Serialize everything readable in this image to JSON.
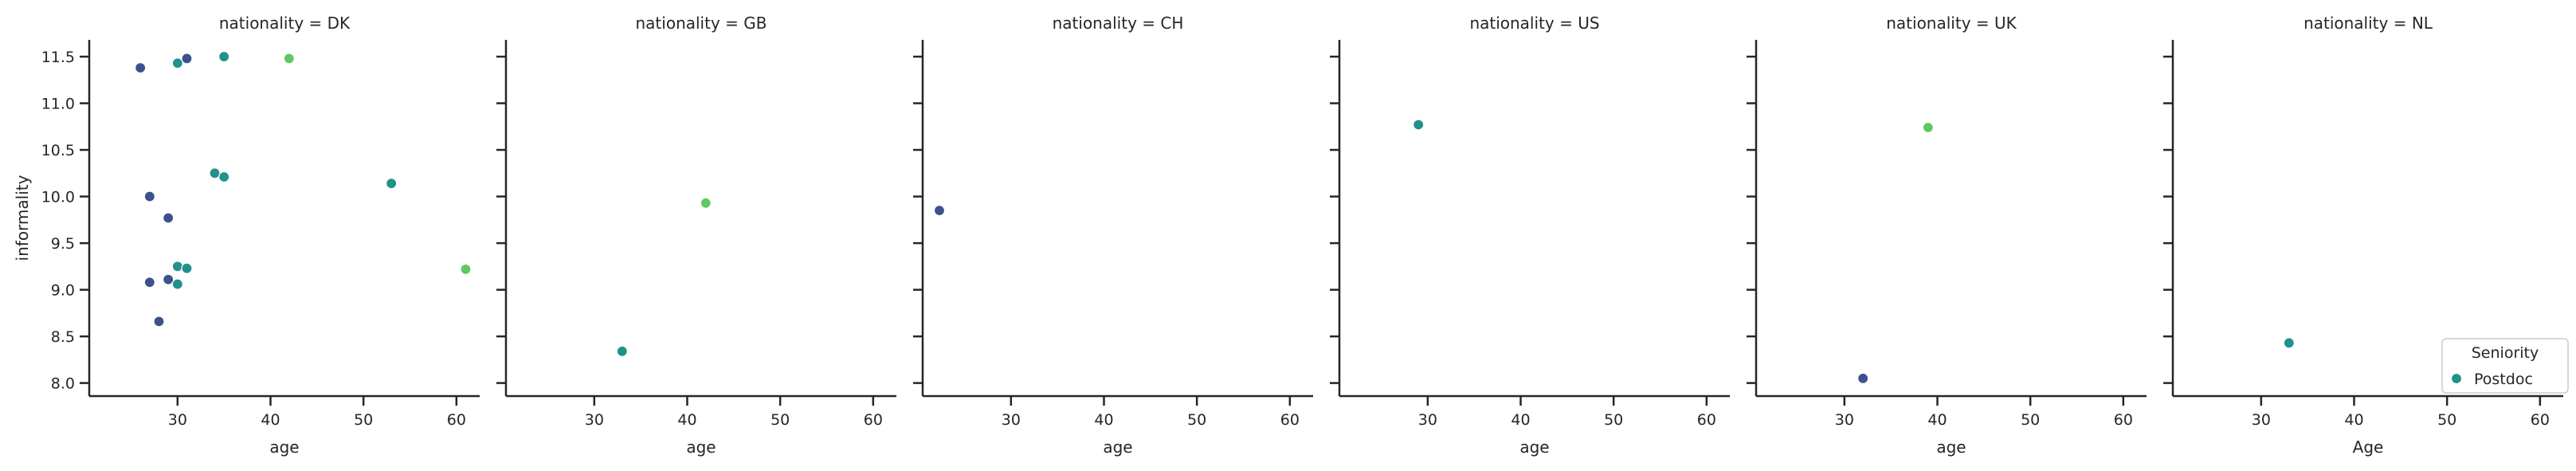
{
  "chart_data": {
    "type": "scatter",
    "facet_label": "nationality",
    "y_label": "informality",
    "x_range": [
      20.5,
      62.5
    ],
    "y_range": [
      7.86,
      11.68
    ],
    "x_ticks": [
      30,
      40,
      50,
      60
    ],
    "y_ticks": [
      8.0,
      8.5,
      9.0,
      9.5,
      10.0,
      10.5,
      11.0,
      11.5
    ],
    "y_tick_labels": [
      "8.0",
      "8.5",
      "9.0",
      "9.5",
      "10.0",
      "10.5",
      "11.0",
      "11.5"
    ],
    "shared_y": true,
    "grid": false,
    "legend": {
      "title": "Seniority",
      "placement": "lower-right",
      "entries": [
        {
          "label": "Postdoc",
          "color": "#21918c"
        }
      ]
    },
    "colors": {
      "dark_blue": "#3b528b",
      "teal": "#21918c",
      "green": "#5ec962"
    },
    "panels": [
      {
        "title": "nationality = DK",
        "xlabel": "age",
        "points": [
          {
            "x": 26,
            "y": 11.38,
            "color": "#3b528b"
          },
          {
            "x": 30,
            "y": 11.43,
            "color": "#21918c"
          },
          {
            "x": 31,
            "y": 11.48,
            "color": "#3b528b"
          },
          {
            "x": 35,
            "y": 11.5,
            "color": "#21918c"
          },
          {
            "x": 42,
            "y": 11.48,
            "color": "#5ec962"
          },
          {
            "x": 34,
            "y": 10.25,
            "color": "#21918c"
          },
          {
            "x": 35,
            "y": 10.21,
            "color": "#21918c"
          },
          {
            "x": 53,
            "y": 10.14,
            "color": "#21918c"
          },
          {
            "x": 27,
            "y": 10.0,
            "color": "#3b528b"
          },
          {
            "x": 29,
            "y": 9.77,
            "color": "#3b528b"
          },
          {
            "x": 30,
            "y": 9.25,
            "color": "#21918c"
          },
          {
            "x": 31,
            "y": 9.23,
            "color": "#21918c"
          },
          {
            "x": 61,
            "y": 9.22,
            "color": "#5ec962"
          },
          {
            "x": 29,
            "y": 9.11,
            "color": "#3b528b"
          },
          {
            "x": 27,
            "y": 9.08,
            "color": "#3b528b"
          },
          {
            "x": 30,
            "y": 9.06,
            "color": "#21918c"
          },
          {
            "x": 28,
            "y": 8.66,
            "color": "#3b528b"
          }
        ]
      },
      {
        "title": "nationality = GB",
        "xlabel": "age",
        "points": [
          {
            "x": 42,
            "y": 9.93,
            "color": "#5ec962"
          },
          {
            "x": 33,
            "y": 8.34,
            "color": "#21918c"
          }
        ]
      },
      {
        "title": "nationality = CH",
        "xlabel": "age",
        "points": [
          {
            "x": 22.3,
            "y": 9.85,
            "color": "#3b528b"
          }
        ]
      },
      {
        "title": "nationality = US",
        "xlabel": "age",
        "points": [
          {
            "x": 29,
            "y": 10.77,
            "color": "#21918c"
          }
        ]
      },
      {
        "title": "nationality = UK",
        "xlabel": "age",
        "points": [
          {
            "x": 39,
            "y": 10.74,
            "color": "#5ec962"
          },
          {
            "x": 32,
            "y": 8.05,
            "color": "#3b528b"
          }
        ]
      },
      {
        "title": "nationality = NL",
        "xlabel": "Age",
        "points": [
          {
            "x": 33,
            "y": 8.43,
            "color": "#21918c"
          }
        ]
      }
    ]
  }
}
